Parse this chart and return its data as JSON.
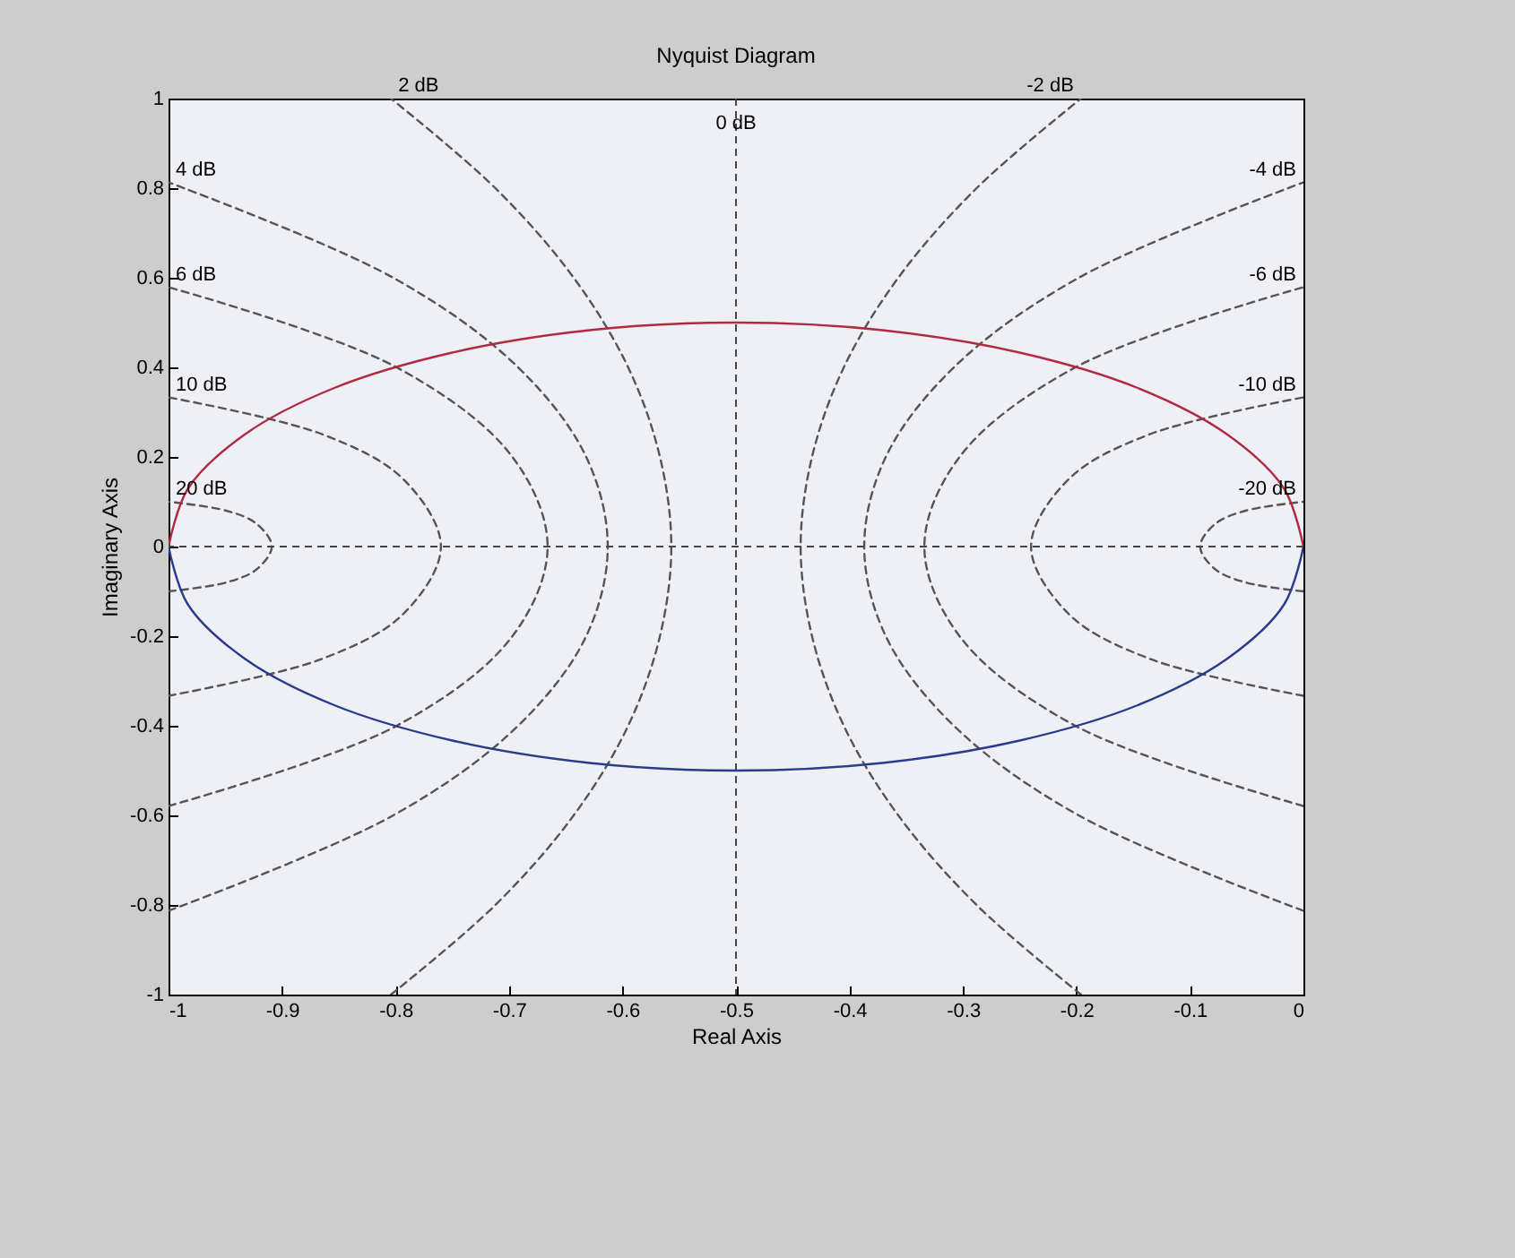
{
  "chart_data": {
    "type": "line",
    "title": "Nyquist Diagram",
    "xlabel": "Real Axis",
    "ylabel": "Imaginary Axis",
    "xlim": [
      -1,
      0
    ],
    "xticks": [
      -1,
      -0.9,
      -0.8,
      -0.7,
      -0.6,
      -0.5,
      -0.4,
      -0.3,
      -0.2,
      -0.1,
      0
    ],
    "ylim": [
      -1,
      1
    ],
    "yticks": [
      -1,
      -0.8,
      -0.6,
      -0.4,
      -0.2,
      0,
      0.2,
      0.4,
      0.6,
      0.8,
      1
    ],
    "ref_lines": [
      {
        "axis": "x",
        "value": -0.5,
        "label": "0 dB",
        "color": "#444444",
        "line_style": "dashed"
      },
      {
        "axis": "y",
        "value": 0,
        "color": "#444444",
        "line_style": "dashed"
      }
    ],
    "series": [
      {
        "name": "2 dB",
        "color": "#555555",
        "line_style": "dashed",
        "x": [
          -0.804,
          -0.712,
          -0.643,
          -0.595,
          -0.567,
          -0.557,
          -0.567,
          -0.595,
          -0.643,
          -0.712,
          -0.804
        ],
        "values": [
          -1,
          -0.8,
          -0.6,
          -0.4,
          -0.2,
          0,
          0.2,
          0.4,
          0.6,
          0.8,
          1
        ]
      },
      {
        "name": "-2 dB",
        "color": "#555555",
        "line_style": "dashed",
        "x": [
          -0.196,
          -0.288,
          -0.357,
          -0.405,
          -0.433,
          -0.443,
          -0.433,
          -0.405,
          -0.357,
          -0.288,
          -0.196
        ],
        "values": [
          -1,
          -0.8,
          -0.6,
          -0.4,
          -0.2,
          0,
          0.2,
          0.4,
          0.6,
          0.8,
          1
        ]
      },
      {
        "name": "4 dB",
        "color": "#555555",
        "line_style": "dashed",
        "x": [
          -1,
          -0.802,
          -0.692,
          -0.632,
          -0.613,
          -0.632,
          -0.692,
          -0.802,
          -1
        ],
        "values": [
          -0.813,
          -0.6,
          -0.4,
          -0.2,
          0,
          0.2,
          0.4,
          0.6,
          0.813
        ]
      },
      {
        "name": "-4 dB",
        "color": "#555555",
        "line_style": "dashed",
        "x": [
          0,
          -0.198,
          -0.308,
          -0.368,
          -0.387,
          -0.368,
          -0.308,
          -0.198,
          0
        ],
        "values": [
          -0.813,
          -0.6,
          -0.4,
          -0.2,
          0,
          0.2,
          0.4,
          0.6,
          0.813
        ]
      },
      {
        "name": "6 dB",
        "color": "#555555",
        "line_style": "dashed",
        "x": [
          -1,
          -0.799,
          -0.697,
          -0.666,
          -0.697,
          -0.799,
          -1
        ],
        "values": [
          -0.579,
          -0.4,
          -0.2,
          0,
          0.2,
          0.4,
          0.579
        ]
      },
      {
        "name": "-6 dB",
        "color": "#555555",
        "line_style": "dashed",
        "x": [
          0,
          -0.201,
          -0.303,
          -0.334,
          -0.303,
          -0.201,
          0
        ],
        "values": [
          -0.579,
          -0.4,
          -0.2,
          0,
          0.2,
          0.4,
          0.579
        ]
      },
      {
        "name": "10 dB",
        "color": "#555555",
        "line_style": "dashed",
        "x": [
          -1,
          -0.864,
          -0.793,
          -0.76,
          -0.793,
          -0.864,
          -1
        ],
        "values": [
          -0.333,
          -0.25,
          -0.15,
          0,
          0.15,
          0.25,
          0.333
        ]
      },
      {
        "name": "-10 dB",
        "color": "#555555",
        "line_style": "dashed",
        "x": [
          0,
          -0.136,
          -0.207,
          -0.24,
          -0.207,
          -0.136,
          0
        ],
        "values": [
          -0.333,
          -0.25,
          -0.15,
          0,
          0.15,
          0.25,
          0.333
        ]
      },
      {
        "name": "20 dB",
        "color": "#555555",
        "line_style": "dashed",
        "x": [
          -1,
          -0.949,
          -0.922,
          -0.909,
          -0.922,
          -0.949,
          -1
        ],
        "values": [
          -0.1,
          -0.08,
          -0.05,
          0,
          0.05,
          0.08,
          0.1
        ]
      },
      {
        "name": "-20 dB",
        "color": "#555555",
        "line_style": "dashed",
        "x": [
          0,
          -0.051,
          -0.078,
          -0.091,
          -0.078,
          -0.051,
          0
        ],
        "values": [
          -0.1,
          -0.08,
          -0.05,
          0,
          0.05,
          0.08,
          0.1
        ]
      },
      {
        "color": "#b02a44",
        "line_style": "solid",
        "x": [
          0,
          -0.017,
          -0.067,
          -0.146,
          -0.25,
          -0.371,
          -0.5,
          -0.629,
          -0.75,
          -0.854,
          -0.933,
          -0.983,
          -1
        ],
        "values": [
          0,
          0.129,
          0.25,
          0.354,
          0.433,
          0.483,
          0.5,
          0.483,
          0.433,
          0.354,
          0.25,
          0.129,
          0
        ]
      },
      {
        "color": "#2a3a8c",
        "line_style": "solid",
        "x": [
          -1,
          -0.983,
          -0.933,
          -0.854,
          -0.75,
          -0.629,
          -0.5,
          -0.371,
          -0.25,
          -0.146,
          -0.067,
          -0.017,
          0
        ],
        "values": [
          0,
          -0.129,
          -0.25,
          -0.354,
          -0.433,
          -0.483,
          -0.5,
          -0.483,
          -0.433,
          -0.354,
          -0.25,
          -0.129,
          0
        ]
      }
    ]
  }
}
